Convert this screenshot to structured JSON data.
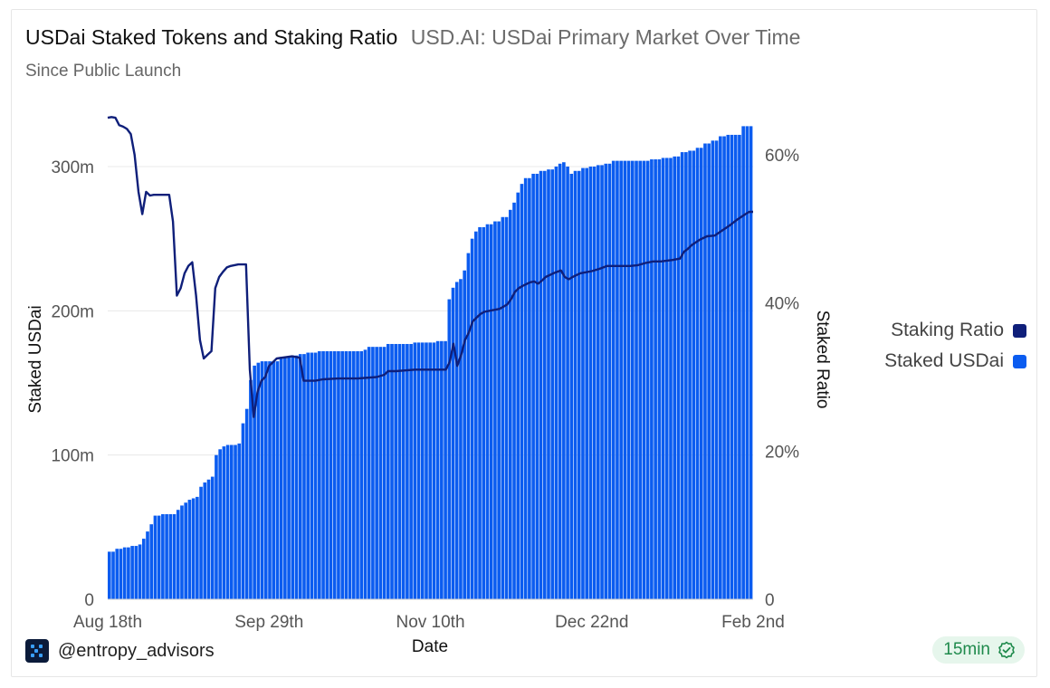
{
  "header": {
    "title": "USDai Staked Tokens and Staking Ratio",
    "query_name": "USD.AI: USDai Primary Market Over Time",
    "subtitle": "Since Public Launch"
  },
  "footer": {
    "handle": "@entropy_advisors",
    "refresh_label": "15min"
  },
  "legend": {
    "items": [
      {
        "label": "Staking Ratio",
        "color": "#0f1f7a"
      },
      {
        "label": "Staked USDai",
        "color": "#0b5cf0"
      }
    ]
  },
  "chart_data": {
    "type": "bar+line",
    "title": "USDai Staked Tokens and Staking Ratio",
    "xlabel": "Date",
    "ylabel_left": "Staked USDai",
    "ylabel_right": "Staked Ratio",
    "x_ticks": [
      "Aug 18th",
      "Sep 29th",
      "Nov 10th",
      "Dec 22nd",
      "Feb 2nd"
    ],
    "y_left_ticks": [
      {
        "value": 0,
        "label": "0"
      },
      {
        "value": 100,
        "label": "100m"
      },
      {
        "value": 200,
        "label": "200m"
      },
      {
        "value": 300,
        "label": "300m"
      }
    ],
    "y_right_ticks": [
      {
        "value": 0,
        "label": "0"
      },
      {
        "value": 20,
        "label": "20%"
      },
      {
        "value": 40,
        "label": "40%"
      },
      {
        "value": 60,
        "label": "60%"
      }
    ],
    "ylim_left": [
      0,
      300
    ],
    "ylim_right": [
      0,
      60
    ],
    "x_range_days": [
      0,
      168
    ],
    "series": [
      {
        "name": "Staked USDai",
        "kind": "bar",
        "units": "millions",
        "points": [
          [
            0,
            33
          ],
          [
            2,
            35
          ],
          [
            4,
            36
          ],
          [
            6,
            37
          ],
          [
            8,
            38
          ],
          [
            9,
            42
          ],
          [
            10,
            47
          ],
          [
            11,
            52
          ],
          [
            12,
            58
          ],
          [
            14,
            59
          ],
          [
            17,
            59
          ],
          [
            18,
            62
          ],
          [
            19,
            65
          ],
          [
            20,
            67
          ],
          [
            21,
            69
          ],
          [
            22,
            70
          ],
          [
            23,
            71
          ],
          [
            24,
            78
          ],
          [
            25,
            81
          ],
          [
            26,
            83
          ],
          [
            27,
            85
          ],
          [
            28,
            100
          ],
          [
            29,
            104
          ],
          [
            30,
            106
          ],
          [
            31,
            107
          ],
          [
            33,
            107
          ],
          [
            34,
            108
          ],
          [
            35,
            122
          ],
          [
            36,
            132
          ],
          [
            37,
            152
          ],
          [
            38,
            162
          ],
          [
            39,
            164
          ],
          [
            40,
            165
          ],
          [
            44,
            165
          ],
          [
            45,
            168
          ],
          [
            48,
            169
          ],
          [
            50,
            170
          ],
          [
            52,
            171
          ],
          [
            55,
            172
          ],
          [
            60,
            172
          ],
          [
            65,
            172
          ],
          [
            67,
            173
          ],
          [
            68,
            175
          ],
          [
            72,
            175
          ],
          [
            73,
            177
          ],
          [
            79,
            177
          ],
          [
            80,
            178
          ],
          [
            85,
            178
          ],
          [
            86,
            179
          ],
          [
            88,
            179
          ],
          [
            89,
            208
          ],
          [
            90,
            216
          ],
          [
            91,
            220
          ],
          [
            92,
            222
          ],
          [
            93,
            228
          ],
          [
            94,
            240
          ],
          [
            95,
            250
          ],
          [
            96,
            255
          ],
          [
            97,
            258
          ],
          [
            99,
            260
          ],
          [
            101,
            262
          ],
          [
            103,
            265
          ],
          [
            105,
            270
          ],
          [
            106,
            275
          ],
          [
            107,
            282
          ],
          [
            108,
            288
          ],
          [
            109,
            292
          ],
          [
            111,
            295
          ],
          [
            113,
            297
          ],
          [
            115,
            298
          ],
          [
            117,
            300
          ],
          [
            118,
            302
          ],
          [
            119,
            303
          ],
          [
            120,
            300
          ],
          [
            121,
            295
          ],
          [
            122,
            297
          ],
          [
            124,
            299
          ],
          [
            126,
            300
          ],
          [
            128,
            301
          ],
          [
            130,
            302
          ],
          [
            132,
            304
          ],
          [
            136,
            304
          ],
          [
            140,
            304
          ],
          [
            142,
            305
          ],
          [
            145,
            306
          ],
          [
            148,
            307
          ],
          [
            150,
            310
          ],
          [
            152,
            311
          ],
          [
            154,
            313
          ],
          [
            156,
            316
          ],
          [
            158,
            318
          ],
          [
            160,
            321
          ],
          [
            162,
            322
          ],
          [
            165,
            322
          ],
          [
            166,
            328
          ],
          [
            168,
            328
          ]
        ]
      },
      {
        "name": "Staking Ratio",
        "kind": "line",
        "units": "percent",
        "points": [
          [
            0,
            65
          ],
          [
            1,
            65.1
          ],
          [
            2,
            65
          ],
          [
            3,
            64
          ],
          [
            4,
            63.8
          ],
          [
            5,
            63.5
          ],
          [
            6,
            62.8
          ],
          [
            7,
            60
          ],
          [
            8,
            55
          ],
          [
            9,
            52
          ],
          [
            10,
            55
          ],
          [
            11,
            54.5
          ],
          [
            12,
            54.6
          ],
          [
            14,
            54.6
          ],
          [
            16,
            54.6
          ],
          [
            17,
            51
          ],
          [
            18,
            41
          ],
          [
            19,
            42
          ],
          [
            20,
            44
          ],
          [
            21,
            45
          ],
          [
            22,
            45.5
          ],
          [
            23,
            41
          ],
          [
            24,
            35
          ],
          [
            25,
            32.5
          ],
          [
            26,
            33
          ],
          [
            27,
            33.5
          ],
          [
            28,
            42
          ],
          [
            29,
            43.5
          ],
          [
            30,
            44.2
          ],
          [
            31,
            44.8
          ],
          [
            32,
            45
          ],
          [
            34,
            45.2
          ],
          [
            36,
            45.2
          ],
          [
            37,
            31
          ],
          [
            38,
            24.6
          ],
          [
            39,
            28
          ],
          [
            40,
            29.5
          ],
          [
            41,
            30
          ],
          [
            42,
            31.5
          ],
          [
            44,
            32.5
          ],
          [
            48,
            32.8
          ],
          [
            50,
            32.6
          ],
          [
            51,
            29.5
          ],
          [
            54,
            29.5
          ],
          [
            56,
            29.7
          ],
          [
            60,
            29.8
          ],
          [
            65,
            29.8
          ],
          [
            70,
            30
          ],
          [
            72,
            30.3
          ],
          [
            73,
            30.8
          ],
          [
            75,
            30.8
          ],
          [
            80,
            31
          ],
          [
            85,
            31
          ],
          [
            88,
            31
          ],
          [
            89,
            32
          ],
          [
            90,
            34.5
          ],
          [
            91,
            31.5
          ],
          [
            92,
            33
          ],
          [
            93,
            35
          ],
          [
            94,
            36
          ],
          [
            95,
            37.5
          ],
          [
            96,
            38
          ],
          [
            97,
            38.5
          ],
          [
            98,
            38.8
          ],
          [
            100,
            39
          ],
          [
            102,
            39.2
          ],
          [
            104,
            39.8
          ],
          [
            105,
            40.5
          ],
          [
            106,
            41.5
          ],
          [
            107,
            42
          ],
          [
            108,
            42.3
          ],
          [
            110,
            42.8
          ],
          [
            111,
            42.9
          ],
          [
            112,
            42.6
          ],
          [
            113,
            43
          ],
          [
            114,
            43.5
          ],
          [
            116,
            44
          ],
          [
            117,
            44.2
          ],
          [
            118,
            44.4
          ],
          [
            119,
            43.5
          ],
          [
            120,
            43.2
          ],
          [
            121,
            43.5
          ],
          [
            123,
            44
          ],
          [
            126,
            44.3
          ],
          [
            128,
            44.6
          ],
          [
            130,
            45
          ],
          [
            133,
            45
          ],
          [
            136,
            45
          ],
          [
            138,
            45.1
          ],
          [
            140,
            45.4
          ],
          [
            142,
            45.6
          ],
          [
            144,
            45.6
          ],
          [
            147,
            45.8
          ],
          [
            149,
            46
          ],
          [
            150,
            46.9
          ],
          [
            151,
            47.3
          ],
          [
            152,
            47.8
          ],
          [
            154,
            48.5
          ],
          [
            156,
            49
          ],
          [
            158,
            49.1
          ],
          [
            160,
            49.8
          ],
          [
            162,
            50.5
          ],
          [
            164,
            51.3
          ],
          [
            166,
            52
          ],
          [
            167,
            52.3
          ],
          [
            168,
            52.3
          ]
        ]
      }
    ]
  }
}
